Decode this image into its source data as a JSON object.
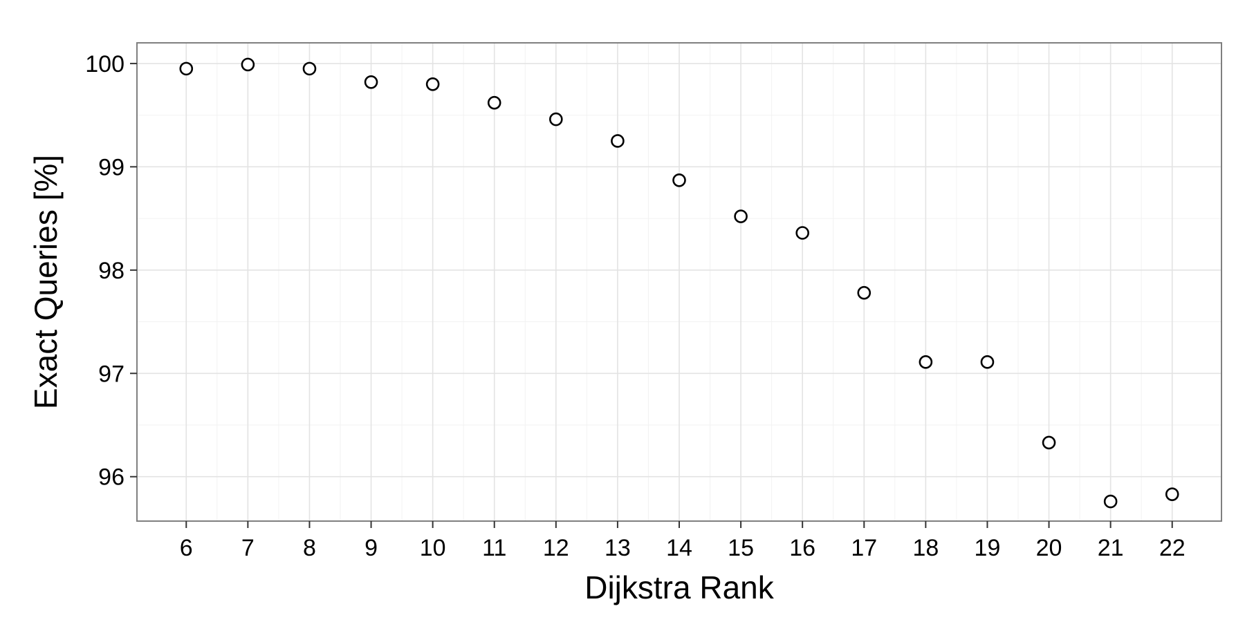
{
  "chart_data": {
    "type": "scatter",
    "xlabel": "Dijkstra Rank",
    "ylabel": "Exact Queries [%]",
    "x_ticks": [
      6,
      7,
      8,
      9,
      10,
      11,
      12,
      13,
      14,
      15,
      16,
      17,
      18,
      19,
      20,
      21,
      22
    ],
    "y_ticks": [
      96,
      97,
      98,
      99,
      100
    ],
    "xlim": [
      5.2,
      22.8
    ],
    "ylim": [
      95.57,
      100.2
    ],
    "grid": true,
    "marker": "open-circle",
    "points": [
      {
        "x": 6,
        "y": 99.95
      },
      {
        "x": 7,
        "y": 99.99
      },
      {
        "x": 8,
        "y": 99.95
      },
      {
        "x": 9,
        "y": 99.82
      },
      {
        "x": 10,
        "y": 99.8
      },
      {
        "x": 11,
        "y": 99.62
      },
      {
        "x": 12,
        "y": 99.46
      },
      {
        "x": 13,
        "y": 99.25
      },
      {
        "x": 14,
        "y": 98.87
      },
      {
        "x": 15,
        "y": 98.52
      },
      {
        "x": 16,
        "y": 98.36
      },
      {
        "x": 17,
        "y": 97.78
      },
      {
        "x": 18,
        "y": 97.11
      },
      {
        "x": 19,
        "y": 97.11
      },
      {
        "x": 20,
        "y": 96.33
      },
      {
        "x": 21,
        "y": 95.76
      },
      {
        "x": 22,
        "y": 95.83
      }
    ]
  }
}
